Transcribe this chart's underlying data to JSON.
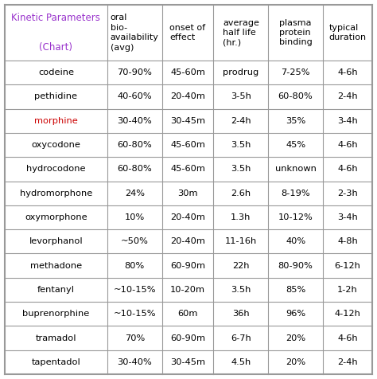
{
  "title_line1": "Kinetic Parameters",
  "title_line3": "(Chart)",
  "title_color": "#9933cc",
  "columns": [
    "oral\nbio-\navailability\n(avg)",
    "onset of\neffect",
    "average\nhalf life\n(hr.)",
    "plasma\nprotein\nbinding",
    "typical\nduration"
  ],
  "rows": [
    [
      "codeine",
      "70-90%",
      "45-60m",
      "prodrug",
      "7-25%",
      "4-6h"
    ],
    [
      "pethidine",
      "40-60%",
      "20-40m",
      "3-5h",
      "60-80%",
      "2-4h"
    ],
    [
      "morphine",
      "30-40%",
      "30-45m",
      "2-4h",
      "35%",
      "3-4h"
    ],
    [
      "oxycodone",
      "60-80%",
      "45-60m",
      "3.5h",
      "45%",
      "4-6h"
    ],
    [
      "hydrocodone",
      "60-80%",
      "45-60m",
      "3.5h",
      "unknown",
      "4-6h"
    ],
    [
      "hydromorphone",
      "24%",
      "30m",
      "2.6h",
      "8-19%",
      "2-3h"
    ],
    [
      "oxymorphone",
      "10%",
      "20-40m",
      "1.3h",
      "10-12%",
      "3-4h"
    ],
    [
      "levorphanol",
      "~50%",
      "20-40m",
      "11-16h",
      "40%",
      "4-8h"
    ],
    [
      "methadone",
      "80%",
      "60-90m",
      "22h",
      "80-90%",
      "6-12h"
    ],
    [
      "fentanyl",
      "~10-15%",
      "10-20m",
      "3.5h",
      "85%",
      "1-2h"
    ],
    [
      "buprenorphine",
      "~10-15%",
      "60m",
      "36h",
      "96%",
      "4-12h"
    ],
    [
      "tramadol",
      "70%",
      "60-90m",
      "6-7h",
      "20%",
      "4-6h"
    ],
    [
      "tapentadol",
      "30-40%",
      "30-45m",
      "4.5h",
      "20%",
      "2-4h"
    ]
  ],
  "morphine_color": "#cc0000",
  "text_color": "#000000",
  "bg_color": "#ffffff",
  "border_color": "#999999",
  "figsize": [
    4.74,
    4.76
  ],
  "dpi": 100
}
